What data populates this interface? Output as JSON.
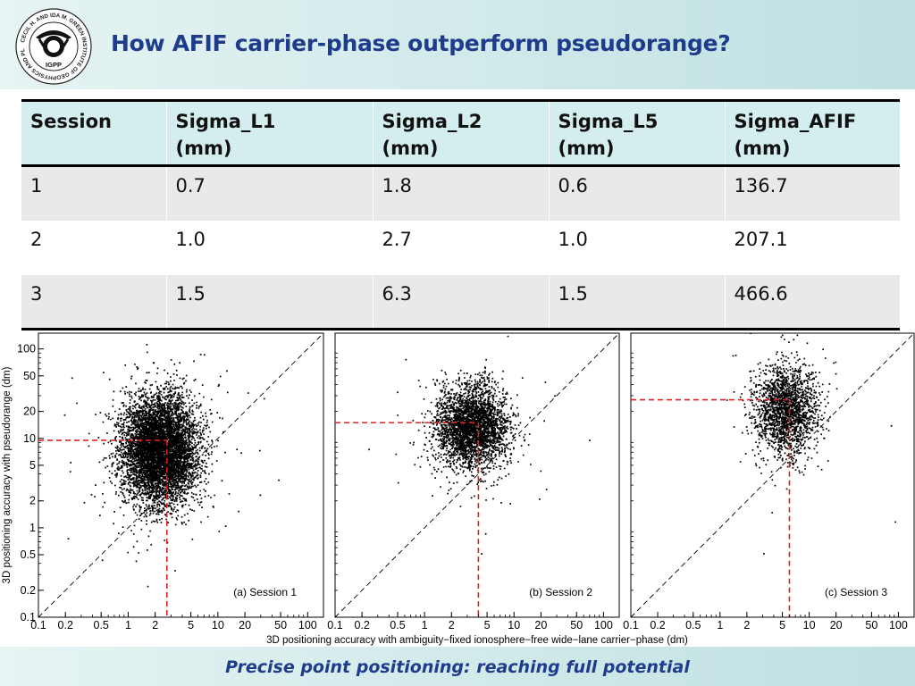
{
  "header": {
    "title": "How AFIF carrier-phase outperform pseudorange?",
    "logo": {
      "text_ring": "CECIL H. AND IDA M. GREEN INSTITUTE OF GEOPHYSICS AND PLANETARY PHYSICS",
      "initials": "IGPP",
      "icon": "posthorn-icon"
    }
  },
  "table": {
    "columns": [
      {
        "line1": "Session",
        "line2": ""
      },
      {
        "line1": "Sigma_L1",
        "line2": "(mm)"
      },
      {
        "line1": "Sigma_L2",
        "line2": "(mm)"
      },
      {
        "line1": "Sigma_L5",
        "line2": "(mm)"
      },
      {
        "line1": "Sigma_AFIF",
        "line2": "(mm)"
      }
    ],
    "rows": [
      [
        "1",
        "0.7",
        "1.8",
        "0.6",
        "136.7"
      ],
      [
        "2",
        "1.0",
        "2.7",
        "1.0",
        "207.1"
      ],
      [
        "3",
        "1.5",
        "6.3",
        "1.5",
        "466.6"
      ]
    ]
  },
  "chart_data": [
    {
      "type": "scatter",
      "annotation": "(a) Session 1",
      "x_scale": "log",
      "y_scale": "log",
      "xlim": [
        0.1,
        150
      ],
      "ylim": [
        0.1,
        150
      ],
      "x_ticks": [
        "0.1",
        "0.2",
        "0.5",
        "1",
        "2",
        "5",
        "10",
        "20",
        "50",
        "100"
      ],
      "y_ticks": [
        "0.1",
        "0.2",
        "0.5",
        "1",
        "2",
        "5",
        "10",
        "20",
        "50",
        "100"
      ],
      "diagonal": "y = x (black dashed)",
      "marker": {
        "x": 2.7,
        "y": 9.5,
        "color": "#e02020"
      },
      "cloud": {
        "x_center": 2.2,
        "y_center": 7.5,
        "x_spread": 0.21,
        "y_spread": 0.3,
        "points": 6500
      }
    },
    {
      "type": "scatter",
      "annotation": "(b) Session 2",
      "x_scale": "log",
      "y_scale": "log",
      "xlim": [
        0.1,
        150
      ],
      "ylim": [
        0.1,
        150
      ],
      "x_ticks": [
        "0.1",
        "0.2",
        "0.5",
        "1",
        "2",
        "5",
        "10",
        "20",
        "50",
        "100"
      ],
      "y_ticks": [],
      "diagonal": "y = x (black dashed)",
      "marker": {
        "x": 4.0,
        "y": 15,
        "color": "#e02020"
      },
      "cloud": {
        "x_center": 3.3,
        "y_center": 14,
        "x_spread": 0.2,
        "y_spread": 0.23,
        "points": 3300
      }
    },
    {
      "type": "scatter",
      "annotation": "(c) Session 3",
      "x_scale": "log",
      "y_scale": "log",
      "xlim": [
        0.1,
        150
      ],
      "ylim": [
        0.1,
        150
      ],
      "x_ticks": [
        "0.1",
        "0.2",
        "0.5",
        "1",
        "2",
        "5",
        "10",
        "20",
        "50",
        "100"
      ],
      "y_ticks": [],
      "diagonal": "y = x (black dashed)",
      "marker": {
        "x": 6.0,
        "y": 27,
        "color": "#e02020"
      },
      "cloud": {
        "x_center": 5.5,
        "y_center": 21,
        "x_spread": 0.18,
        "y_spread": 0.25,
        "points": 2000
      }
    }
  ],
  "axes": {
    "ylabel": "3D positioning accuracy with pseudorange (dm)",
    "xlabel": "3D positioning accuracy with ambiguity−fixed ionosphere−free wide−lane carrier−phase (dm)"
  },
  "footer": {
    "text": "Precise point positioning: reaching full potential"
  }
}
